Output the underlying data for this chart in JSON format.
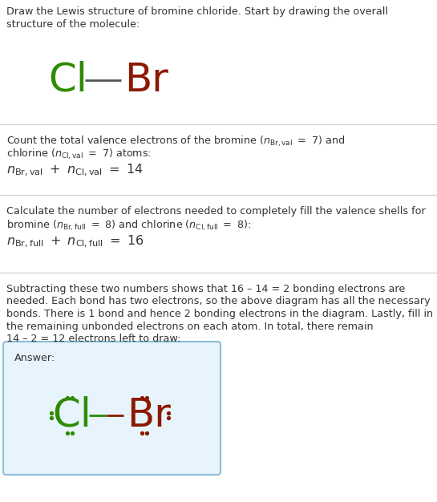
{
  "cl_color": "#2e8b00",
  "br_color": "#8b1a00",
  "text_color": "#333333",
  "bg_color": "#ffffff",
  "answer_bg_color": "#e8f4fc",
  "answer_border_color": "#8bbdd9",
  "line_color": "#cccccc",
  "title_line1": "Draw the Lewis structure of bromine chloride. Start by drawing the overall",
  "title_line2": "structure of the molecule:",
  "s1_line1": "Count the total valence electrons of the bromine (n_Br,val = 7) and",
  "s1_line2": "chlorine (n_Cl,val = 7) atoms:",
  "s1_eq": "$n_{\\mathrm{Br,val}} + n_{\\mathrm{Cl,val}} = 14$",
  "s2_line1": "Calculate the number of electrons needed to completely fill the valence shells for",
  "s2_line2": "bromine (n_Br,full = 8) and chlorine (n_Cl,full = 8):",
  "s2_eq": "$n_{\\mathrm{Br,full}} + n_{\\mathrm{Cl,full}} = 16$",
  "s3_lines": [
    "Subtracting these two numbers shows that 16 – 14 = 2 bonding electrons are",
    "needed. Each bond has two electrons, so the above diagram has all the necessary",
    "bonds. There is 1 bond and hence 2 bonding electrons in the diagram. Lastly, fill in",
    "the remaining unbonded electrons on each atom. In total, there remain",
    "14 – 2 = 12 electrons left to draw:"
  ],
  "answer_label": "Answer:"
}
